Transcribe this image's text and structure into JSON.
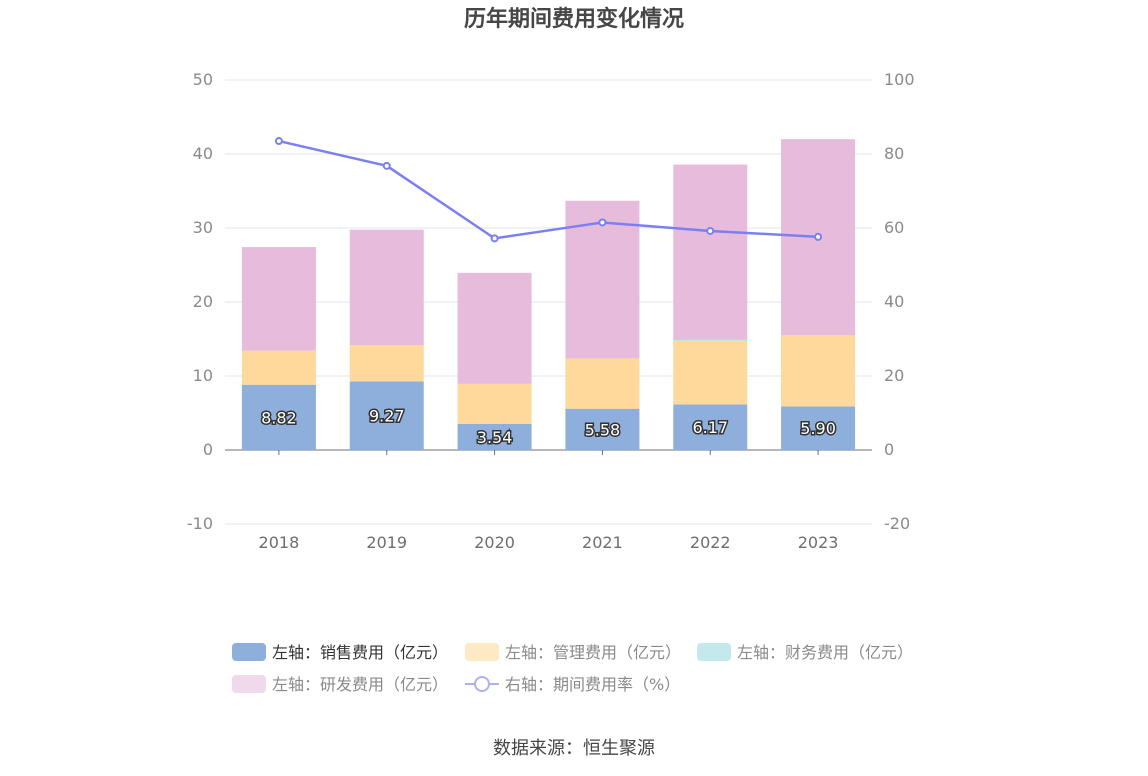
{
  "chart_data": {
    "type": "bar",
    "title": "历年期间费用变化情况",
    "categories": [
      "2018",
      "2019",
      "2020",
      "2021",
      "2022",
      "2023"
    ],
    "stacked": true,
    "y_left": {
      "ticks": [
        50,
        40,
        30,
        20,
        10,
        0,
        -10
      ],
      "ylim": [
        -10,
        50
      ]
    },
    "y_right": {
      "ticks": [
        100,
        80,
        60,
        40,
        20,
        0,
        -20
      ],
      "ylim": [
        -20,
        100
      ]
    },
    "grid": true,
    "legend_position": "bottom",
    "series": [
      {
        "name": "左轴：销售费用（亿元）",
        "type": "bar",
        "axis": "left",
        "color": "#8eaedb",
        "values": [
          8.82,
          9.27,
          3.54,
          5.58,
          6.17,
          5.9
        ],
        "labels": [
          "8.82",
          "9.27",
          "3.54",
          "5.58",
          "6.17",
          "5.90"
        ]
      },
      {
        "name": "左轴：管理费用（亿元）",
        "type": "bar",
        "axis": "left",
        "color": "#fed99b",
        "values": [
          4.6,
          4.9,
          5.4,
          6.8,
          8.6,
          9.6
        ]
      },
      {
        "name": "左轴：财务费用（亿元）",
        "type": "bar",
        "axis": "left",
        "color": "#b9e5e8",
        "values": [
          0,
          0,
          0,
          0,
          0.1,
          0
        ]
      },
      {
        "name": "左轴：研发费用（亿元）",
        "type": "bar",
        "axis": "left",
        "color": "#e7bbdc",
        "values": [
          14.0,
          15.6,
          15.0,
          21.3,
          23.7,
          26.5
        ]
      },
      {
        "name": "右轴：期间费用率（%）",
        "type": "line",
        "axis": "right",
        "color": "#7b7ff0",
        "values": [
          83.5,
          76.8,
          57.2,
          61.5,
          59.2,
          57.6
        ]
      }
    ]
  },
  "legend": {
    "items": [
      {
        "label": "左轴：销售费用（亿元）",
        "color": "#8eaedb",
        "text_color": "#333333"
      },
      {
        "label": "左轴：管理费用（亿元）",
        "color": "#fde9c4",
        "text_color": "#8a8a8a"
      },
      {
        "label": "左轴：财务费用（亿元）",
        "color": "#c4e9ec",
        "text_color": "#8a8a8a"
      },
      {
        "label": "左轴：研发费用（亿元）",
        "color": "#f1d9ec",
        "text_color": "#8a8a8a"
      },
      {
        "label": "右轴：期间费用率（%）",
        "color": "#aeb0f5",
        "text_color": "#8a8a8a"
      }
    ]
  },
  "source": "数据来源：恒生聚源"
}
